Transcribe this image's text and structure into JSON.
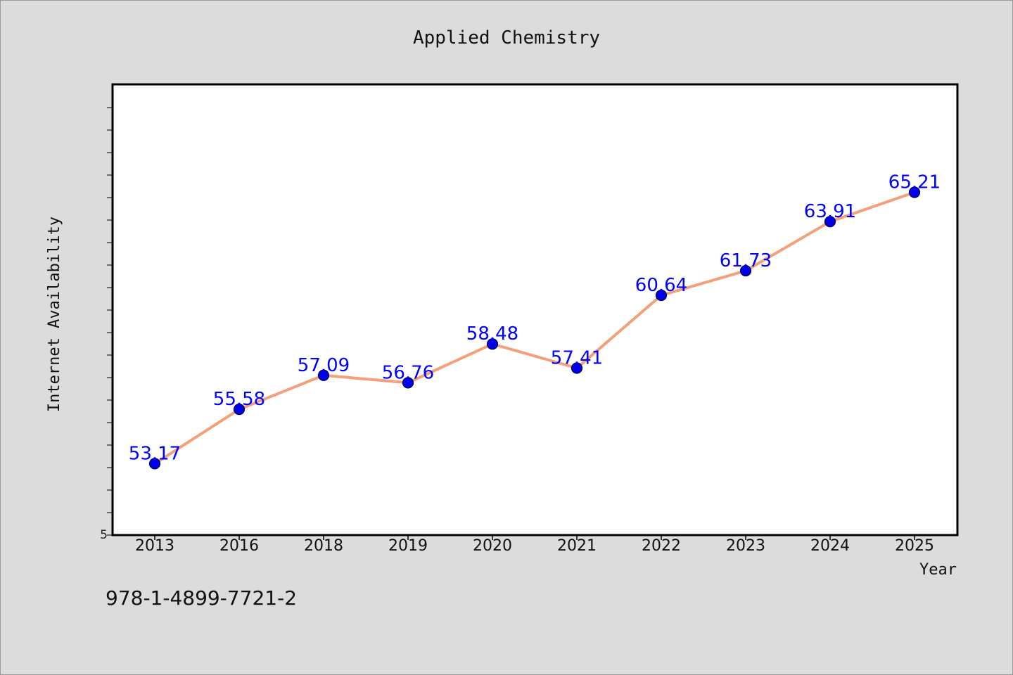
{
  "chart_data": {
    "type": "line",
    "title": "Applied Chemistry",
    "xlabel": "Year",
    "ylabel": "Internet Availability",
    "categories": [
      "2013",
      "2016",
      "2018",
      "2019",
      "2020",
      "2021",
      "2022",
      "2023",
      "2024",
      "2025"
    ],
    "series": [
      {
        "values": [
          53.17,
          55.58,
          57.09,
          56.76,
          58.48,
          57.41,
          60.64,
          61.73,
          63.91,
          65.21
        ],
        "value_labels": [
          "53.17",
          "55.58",
          "57.09",
          "56.76",
          "58.48",
          "57.41",
          "60.64",
          "61.73",
          "63.91",
          "65.21"
        ]
      }
    ],
    "y_tick_label": "5",
    "ylim": [
      50,
      70
    ],
    "grid": false,
    "legend": "none",
    "colors": {
      "line": "#f4a07a",
      "marker": "#0000ee",
      "marker_edge": "#000033",
      "data_label": "#0000ff",
      "plot_bg": "#ffffff",
      "figure_bg": "#dcdcdc"
    }
  },
  "footer": {
    "identifier": "978-1-4899-7721-2"
  }
}
